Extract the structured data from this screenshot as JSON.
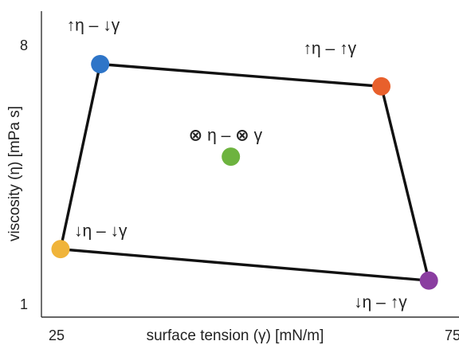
{
  "chart_data": {
    "type": "scatter",
    "xlabel": "surface tension (γ) [mN/m]",
    "ylabel": "viscosity (η) [mPa s]",
    "xlim": [
      25,
      75
    ],
    "ylim": [
      1,
      8
    ],
    "x_ticks": [
      "25",
      "75"
    ],
    "y_ticks": [
      "8",
      "1"
    ],
    "grid": false,
    "legend": "none",
    "outline": {
      "color": "#111111",
      "order": [
        "high-eta-low-gamma",
        "high-eta-high-gamma",
        "low-eta-high-gamma",
        "low-eta-low-gamma"
      ]
    },
    "points": [
      {
        "id": "high-eta-low-gamma",
        "x": 30.5,
        "y": 7.45,
        "color": "#2E75C8",
        "eta_arrow": "up",
        "gamma_arrow": "down",
        "label": "η – γ"
      },
      {
        "id": "high-eta-high-gamma",
        "x": 66.0,
        "y": 6.85,
        "color": "#E8602C",
        "eta_arrow": "up",
        "gamma_arrow": "up",
        "label": "η – γ"
      },
      {
        "id": "low-eta-low-gamma",
        "x": 25.5,
        "y": 2.45,
        "color": "#F0B43A",
        "eta_arrow": "down",
        "gamma_arrow": "down",
        "label": "η – γ"
      },
      {
        "id": "low-eta-high-gamma",
        "x": 72.0,
        "y": 1.6,
        "color": "#8A3DA0",
        "eta_arrow": "down",
        "gamma_arrow": "up",
        "label": "η – γ"
      },
      {
        "id": "neutral",
        "x": 47.0,
        "y": 4.95,
        "color": "#6DB33F",
        "eta_arrow": "none",
        "gamma_arrow": "none",
        "label": "η – γ"
      }
    ]
  }
}
